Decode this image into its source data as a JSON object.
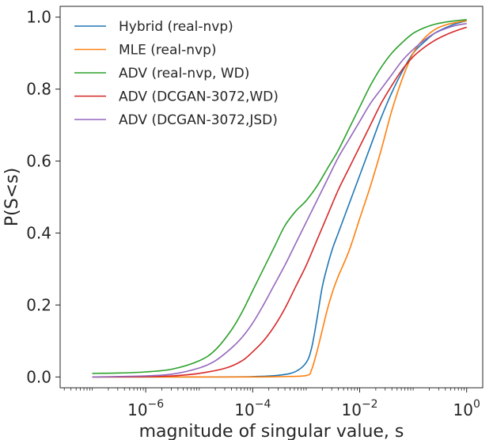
{
  "chart_data": {
    "type": "line",
    "title": "",
    "xlabel": "magnitude of singular value, s",
    "ylabel": "P(S<s)",
    "xscale": "log",
    "xlim_log10": [
      -7.6,
      0.3
    ],
    "ylim": [
      -0.03,
      1.03
    ],
    "legend_position": "top-left",
    "grid": false,
    "x_ticks": [
      {
        "exp": -6,
        "base": "10",
        "power": "−6"
      },
      {
        "exp": -4,
        "base": "10",
        "power": "−4"
      },
      {
        "exp": -2,
        "base": "10",
        "power": "−2"
      },
      {
        "exp": 0,
        "base": "10",
        "power": "0"
      }
    ],
    "y_ticks": [
      {
        "value": 0.0,
        "label": "0.0"
      },
      {
        "value": 0.2,
        "label": "0.2"
      },
      {
        "value": 0.4,
        "label": "0.4"
      },
      {
        "value": 0.6,
        "label": "0.6"
      },
      {
        "value": 0.8,
        "label": "0.8"
      },
      {
        "value": 1.0,
        "label": "1.0"
      }
    ],
    "series": [
      {
        "name": "Hybrid (real-nvp)",
        "color": "#1f77b4",
        "log10_x": [
          -7,
          -6,
          -5,
          -4,
          -3.5,
          -3.2,
          -3.0,
          -2.9,
          -2.8,
          -2.7,
          -2.6,
          -2.5,
          -2.4,
          -2.2,
          -2.0,
          -1.8,
          -1.6,
          -1.4,
          -1.2,
          -1.0,
          -0.8,
          -0.6,
          -0.4,
          -0.2,
          0
        ],
        "y": [
          0.0,
          0.0,
          0.0,
          0.001,
          0.005,
          0.015,
          0.04,
          0.08,
          0.16,
          0.25,
          0.31,
          0.36,
          0.4,
          0.48,
          0.56,
          0.64,
          0.72,
          0.79,
          0.85,
          0.9,
          0.93,
          0.955,
          0.97,
          0.982,
          0.99
        ]
      },
      {
        "name": "MLE (real-nvp)",
        "color": "#ff7f0e",
        "log10_x": [
          -7,
          -6,
          -5,
          -4,
          -3.5,
          -3.0,
          -2.9,
          -2.8,
          -2.7,
          -2.6,
          -2.5,
          -2.4,
          -2.2,
          -2.0,
          -1.8,
          -1.6,
          -1.4,
          -1.2,
          -1.0,
          -0.8,
          -0.6,
          -0.4,
          -0.2,
          0
        ],
        "y": [
          0.0,
          0.0,
          0.0,
          0.0,
          0.001,
          0.004,
          0.02,
          0.07,
          0.13,
          0.19,
          0.24,
          0.28,
          0.35,
          0.44,
          0.53,
          0.63,
          0.74,
          0.83,
          0.9,
          0.94,
          0.965,
          0.978,
          0.985,
          0.99
        ]
      },
      {
        "name": "ADV (real-nvp, WD)",
        "color": "#2ca02c",
        "log10_x": [
          -7,
          -6.5,
          -6,
          -5.5,
          -5,
          -4.7,
          -4.4,
          -4.2,
          -4.0,
          -3.8,
          -3.6,
          -3.4,
          -3.2,
          -3.0,
          -2.8,
          -2.6,
          -2.4,
          -2.2,
          -2.0,
          -1.8,
          -1.6,
          -1.4,
          -1.2,
          -1.0,
          -0.8,
          -0.6,
          -0.4,
          -0.2,
          0
        ],
        "y": [
          0.01,
          0.011,
          0.014,
          0.022,
          0.045,
          0.075,
          0.13,
          0.18,
          0.24,
          0.3,
          0.36,
          0.42,
          0.46,
          0.49,
          0.53,
          0.58,
          0.63,
          0.69,
          0.75,
          0.81,
          0.86,
          0.9,
          0.93,
          0.955,
          0.97,
          0.98,
          0.986,
          0.99,
          0.993
        ]
      },
      {
        "name": "ADV (DCGAN-3072,WD)",
        "color": "#d62728",
        "log10_x": [
          -7,
          -6,
          -5.5,
          -5,
          -4.5,
          -4.2,
          -4.0,
          -3.8,
          -3.6,
          -3.4,
          -3.2,
          -3.0,
          -2.8,
          -2.6,
          -2.4,
          -2.2,
          -2.0,
          -1.8,
          -1.6,
          -1.4,
          -1.2,
          -1.0,
          -0.8,
          -0.6,
          -0.4,
          -0.2,
          0
        ],
        "y": [
          0.0,
          0.001,
          0.003,
          0.01,
          0.025,
          0.045,
          0.07,
          0.1,
          0.14,
          0.19,
          0.25,
          0.31,
          0.38,
          0.45,
          0.52,
          0.58,
          0.64,
          0.7,
          0.76,
          0.81,
          0.855,
          0.89,
          0.915,
          0.935,
          0.95,
          0.962,
          0.972
        ]
      },
      {
        "name": "ADV (DCGAN-3072,JSD)",
        "color": "#9467bd",
        "log10_x": [
          -7,
          -6,
          -5.5,
          -5,
          -4.7,
          -4.4,
          -4.2,
          -4.0,
          -3.8,
          -3.6,
          -3.4,
          -3.2,
          -3.0,
          -2.8,
          -2.6,
          -2.4,
          -2.2,
          -2.0,
          -1.8,
          -1.6,
          -1.4,
          -1.2,
          -1.0,
          -0.8,
          -0.6,
          -0.4,
          -0.2,
          0
        ],
        "y": [
          0.0,
          0.003,
          0.008,
          0.025,
          0.045,
          0.08,
          0.11,
          0.15,
          0.2,
          0.255,
          0.31,
          0.37,
          0.43,
          0.49,
          0.55,
          0.61,
          0.66,
          0.71,
          0.76,
          0.8,
          0.84,
          0.88,
          0.91,
          0.935,
          0.955,
          0.968,
          0.977,
          0.982
        ]
      }
    ]
  }
}
